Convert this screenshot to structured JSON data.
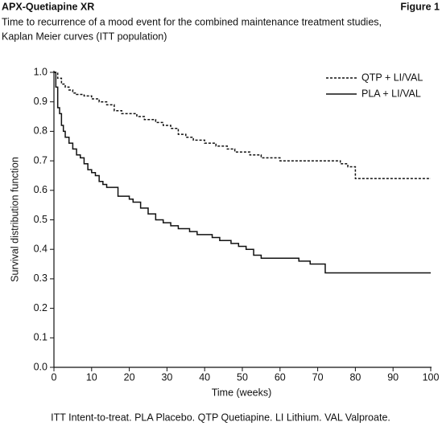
{
  "chart_data": {
    "type": "step-line",
    "header": "APX-Quetiapine XR",
    "figure_label": "Figure 1",
    "subtitle": [
      "Time to recurrence of a mood event for the combined maintenance treatment studies,",
      "Kaplan Meier curves (ITT population)"
    ],
    "x_label": "Time (weeks)",
    "y_label": "Survival distribution function",
    "footnote": "ITT Intent-to-treat. PLA Placebo. QTP Quetiapine. LI Lithium. VAL Valproate.",
    "xlim": [
      0,
      100
    ],
    "xticks": [
      0,
      10,
      20,
      30,
      40,
      50,
      60,
      70,
      80,
      90,
      100
    ],
    "ylim": [
      0,
      1
    ],
    "yticks": [
      {
        "value": 0,
        "label": "0.0"
      },
      0.1,
      0.2,
      0.3,
      0.4,
      0.5,
      0.6,
      0.7,
      0.8,
      0.9,
      {
        "value": 1,
        "label": "1.0"
      }
    ],
    "legend": "upper right",
    "series": [
      {
        "name": "QTP + LI/VAL",
        "color": "#111111",
        "line_style": "dashed",
        "x": [
          0,
          1,
          2,
          3,
          4,
          5,
          6,
          8,
          10,
          12,
          14,
          16,
          18,
          22,
          24,
          27,
          29,
          31,
          33,
          35,
          37,
          40,
          43,
          46,
          48,
          52,
          55,
          60,
          76,
          78,
          80,
          100
        ],
        "values": [
          1.0,
          0.98,
          0.96,
          0.95,
          0.94,
          0.93,
          0.925,
          0.92,
          0.91,
          0.9,
          0.89,
          0.87,
          0.86,
          0.85,
          0.84,
          0.83,
          0.82,
          0.81,
          0.79,
          0.78,
          0.77,
          0.76,
          0.75,
          0.74,
          0.73,
          0.72,
          0.71,
          0.7,
          0.69,
          0.68,
          0.64,
          0.64
        ]
      },
      {
        "name": "PLA + LI/VAL",
        "color": "#111111",
        "line_style": "solid",
        "x": [
          0,
          0.5,
          1,
          1.5,
          2,
          2.5,
          3,
          4,
          5,
          6,
          7,
          8,
          9,
          10,
          11,
          12,
          13,
          14,
          17,
          20,
          21,
          23,
          25,
          27,
          29,
          31,
          33,
          36,
          38,
          42,
          44,
          47,
          49,
          51,
          53,
          55,
          65,
          68,
          72,
          100
        ],
        "values": [
          1.0,
          0.95,
          0.88,
          0.86,
          0.82,
          0.8,
          0.78,
          0.76,
          0.74,
          0.72,
          0.71,
          0.69,
          0.67,
          0.66,
          0.65,
          0.63,
          0.62,
          0.61,
          0.58,
          0.57,
          0.56,
          0.54,
          0.52,
          0.5,
          0.49,
          0.48,
          0.47,
          0.46,
          0.45,
          0.44,
          0.43,
          0.42,
          0.41,
          0.4,
          0.38,
          0.37,
          0.36,
          0.35,
          0.32,
          0.32
        ]
      }
    ]
  }
}
